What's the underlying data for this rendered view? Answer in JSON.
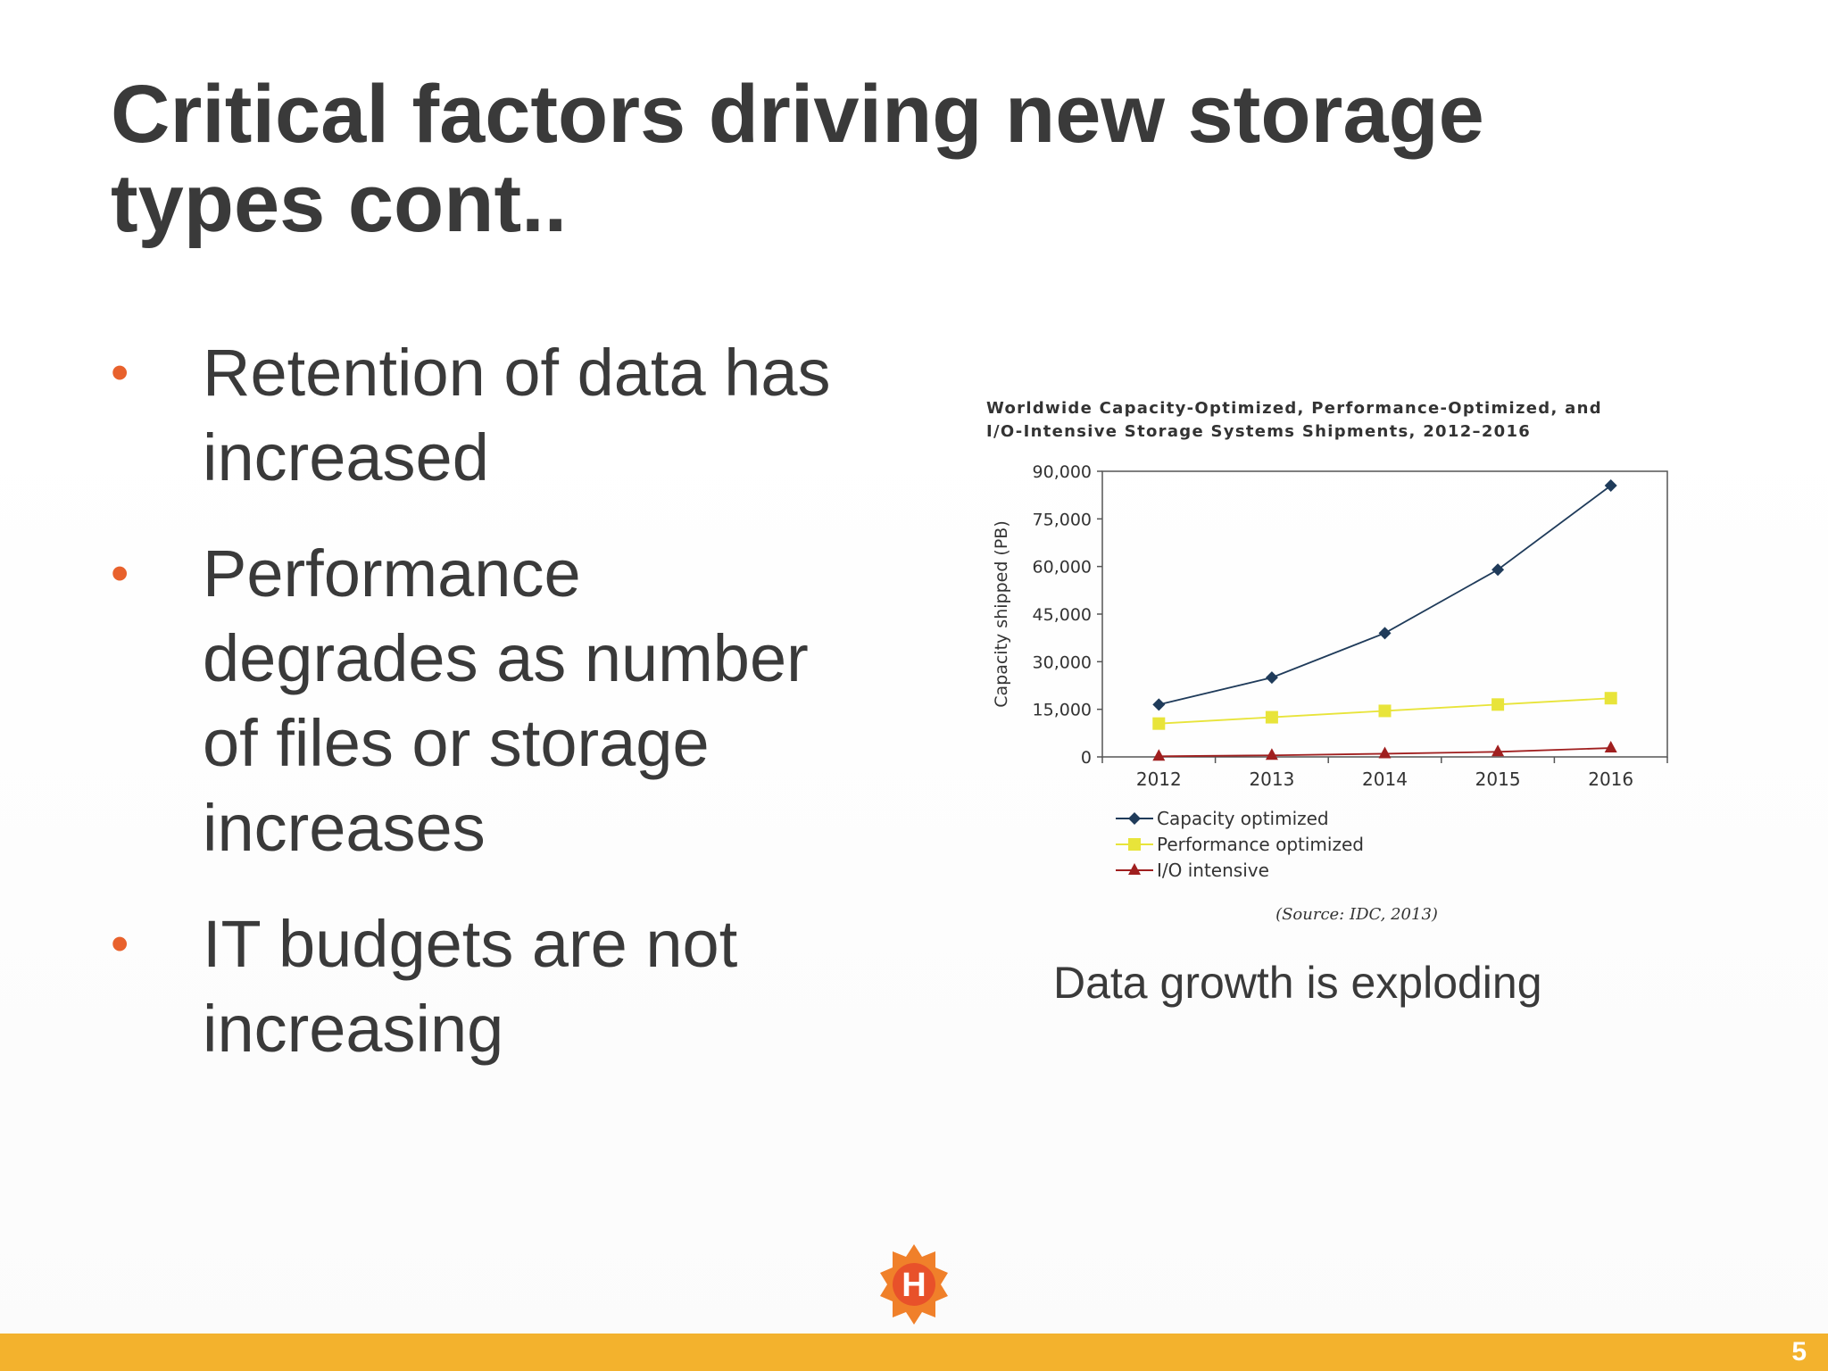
{
  "slide": {
    "title_lines": [
      "Critical factors driving new storage",
      "types cont.."
    ],
    "bullets": [
      {
        "lines": [
          "Retention of data has",
          "increased"
        ]
      },
      {
        "lines": [
          "Performance",
          "degrades as number",
          "of files or storage",
          "increases"
        ]
      },
      {
        "lines": [
          "IT budgets are not",
          "increasing"
        ]
      }
    ],
    "bullet_char": "•",
    "caption": "Data growth is exploding",
    "page_number": "5",
    "logo_letter": "H"
  },
  "colors": {
    "title": "#3a3a3a",
    "bullet": "#e8612c",
    "footer": "#f3b22d",
    "logo_orange": "#f0802a",
    "logo_red": "#e8512a",
    "series_capacity": "#1f3b5a",
    "series_performance": "#e8e43a",
    "series_io": "#a01f1f"
  },
  "chart_data": {
    "type": "line",
    "title_lines": [
      "Worldwide Capacity-Optimized, Performance-Optimized, and",
      "I/O-Intensive Storage Systems Shipments, 2012–2016"
    ],
    "xlabel": "",
    "ylabel": "Capacity shipped (PB)",
    "categories": [
      "2012",
      "2013",
      "2014",
      "2015",
      "2016"
    ],
    "ylim": [
      0,
      90000
    ],
    "yticks": [
      0,
      15000,
      30000,
      45000,
      60000,
      75000,
      90000
    ],
    "ytick_labels": [
      "0",
      "15,000",
      "30,000",
      "45,000",
      "60,000",
      "75,000",
      "90,000"
    ],
    "series": [
      {
        "name": "Capacity optimized",
        "marker": "diamond",
        "color": "#1f3b5a",
        "values": [
          16500,
          25000,
          39000,
          59000,
          85500
        ]
      },
      {
        "name": "Performance optimized",
        "marker": "square",
        "color": "#e8e43a",
        "values": [
          10500,
          12500,
          14500,
          16500,
          18500
        ]
      },
      {
        "name": "I/O intensive",
        "marker": "triangle",
        "color": "#a01f1f",
        "values": [
          200,
          500,
          1000,
          1600,
          2800
        ]
      }
    ],
    "legend_position": "bottom-left",
    "source": "(Source: IDC, 2013)",
    "grid": false
  }
}
